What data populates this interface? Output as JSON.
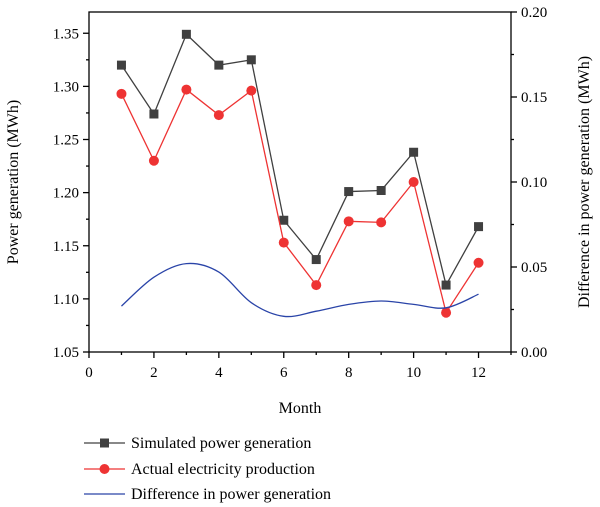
{
  "chart_data": {
    "type": "line",
    "title": "",
    "xlabel": "Month",
    "ylabel": "Power generation (MWh)",
    "y2label": "Difference in power generation (MWh)",
    "xlim": [
      0,
      13
    ],
    "ylim": [
      1.05,
      1.37
    ],
    "y2lim": [
      0.0,
      0.2
    ],
    "x_ticks": [
      0,
      2,
      4,
      6,
      8,
      10,
      12
    ],
    "y_ticks": [
      1.05,
      1.1,
      1.15,
      1.2,
      1.25,
      1.3,
      1.35
    ],
    "y2_ticks": [
      0.0,
      0.05,
      0.1,
      0.15,
      0.2
    ],
    "x_tick_labels": [
      "0",
      "2",
      "4",
      "6",
      "8",
      "10",
      "12"
    ],
    "y_tick_labels": [
      "1.05",
      "1.10",
      "1.15",
      "1.20",
      "1.25",
      "1.30",
      "1.35"
    ],
    "y2_tick_labels": [
      "0.00",
      "0.05",
      "0.10",
      "0.15",
      "0.20"
    ],
    "grid": false,
    "legend_position": "bottom",
    "series": [
      {
        "name": "Simulated power generation",
        "axis": "left",
        "color": "#404040",
        "marker": "square",
        "x": [
          1,
          2,
          3,
          4,
          5,
          6,
          7,
          8,
          9,
          10,
          11,
          12
        ],
        "values": [
          1.32,
          1.274,
          1.349,
          1.32,
          1.325,
          1.174,
          1.137,
          1.201,
          1.202,
          1.238,
          1.113,
          1.168
        ]
      },
      {
        "name": "Actual electricity production",
        "axis": "left",
        "color": "#ee3333",
        "marker": "circle",
        "x": [
          1,
          2,
          3,
          4,
          5,
          6,
          7,
          8,
          9,
          10,
          11,
          12
        ],
        "values": [
          1.293,
          1.23,
          1.297,
          1.273,
          1.296,
          1.153,
          1.113,
          1.173,
          1.172,
          1.21,
          1.087,
          1.134
        ]
      },
      {
        "name": "Difference in power generation",
        "axis": "right",
        "color": "#2a44a8",
        "marker": "none",
        "smooth": true,
        "x": [
          1,
          2,
          3,
          4,
          5,
          6,
          7,
          8,
          9,
          10,
          11,
          12
        ],
        "values": [
          0.027,
          0.044,
          0.052,
          0.047,
          0.029,
          0.021,
          0.024,
          0.028,
          0.03,
          0.028,
          0.026,
          0.034
        ]
      }
    ]
  }
}
